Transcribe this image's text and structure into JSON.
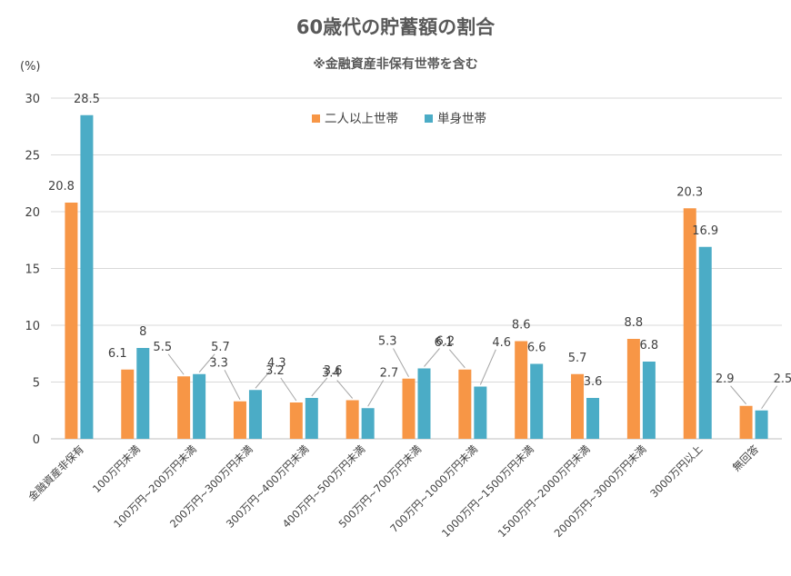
{
  "chart_data": {
    "type": "bar",
    "title": "60歳代の貯蓄額の割合",
    "subtitle": "※金融資産非保有世帯を含む",
    "ylabel": "(%)",
    "ylim": [
      0,
      30
    ],
    "yticks": [
      0,
      5,
      10,
      15,
      20,
      25,
      30
    ],
    "grid": true,
    "legend_position": "top-center",
    "categories": [
      "金融資産非保有",
      "100万円未満",
      "100万円~200万円未満",
      "200万円~300万円未満",
      "300万円~400万円未満",
      "400万円~500万円未満",
      "500万円~700万円未満",
      "700万円~1000万円未満",
      "1000万円~1500万円未満",
      "1500万円~2000万円未満",
      "2000万円~3000万円未満",
      "3000万円以上",
      "無回答"
    ],
    "series": [
      {
        "name": "二人以上世帯",
        "color": "#f79646",
        "values": [
          20.8,
          6.1,
          5.5,
          3.3,
          3.2,
          3.4,
          5.3,
          6.1,
          8.6,
          5.7,
          8.8,
          20.3,
          2.9
        ]
      },
      {
        "name": "単身世帯",
        "color": "#4bacc6",
        "values": [
          28.5,
          8,
          5.7,
          4.3,
          3.6,
          2.7,
          6.2,
          4.6,
          6.6,
          3.6,
          6.8,
          16.9,
          2.5
        ]
      }
    ]
  }
}
